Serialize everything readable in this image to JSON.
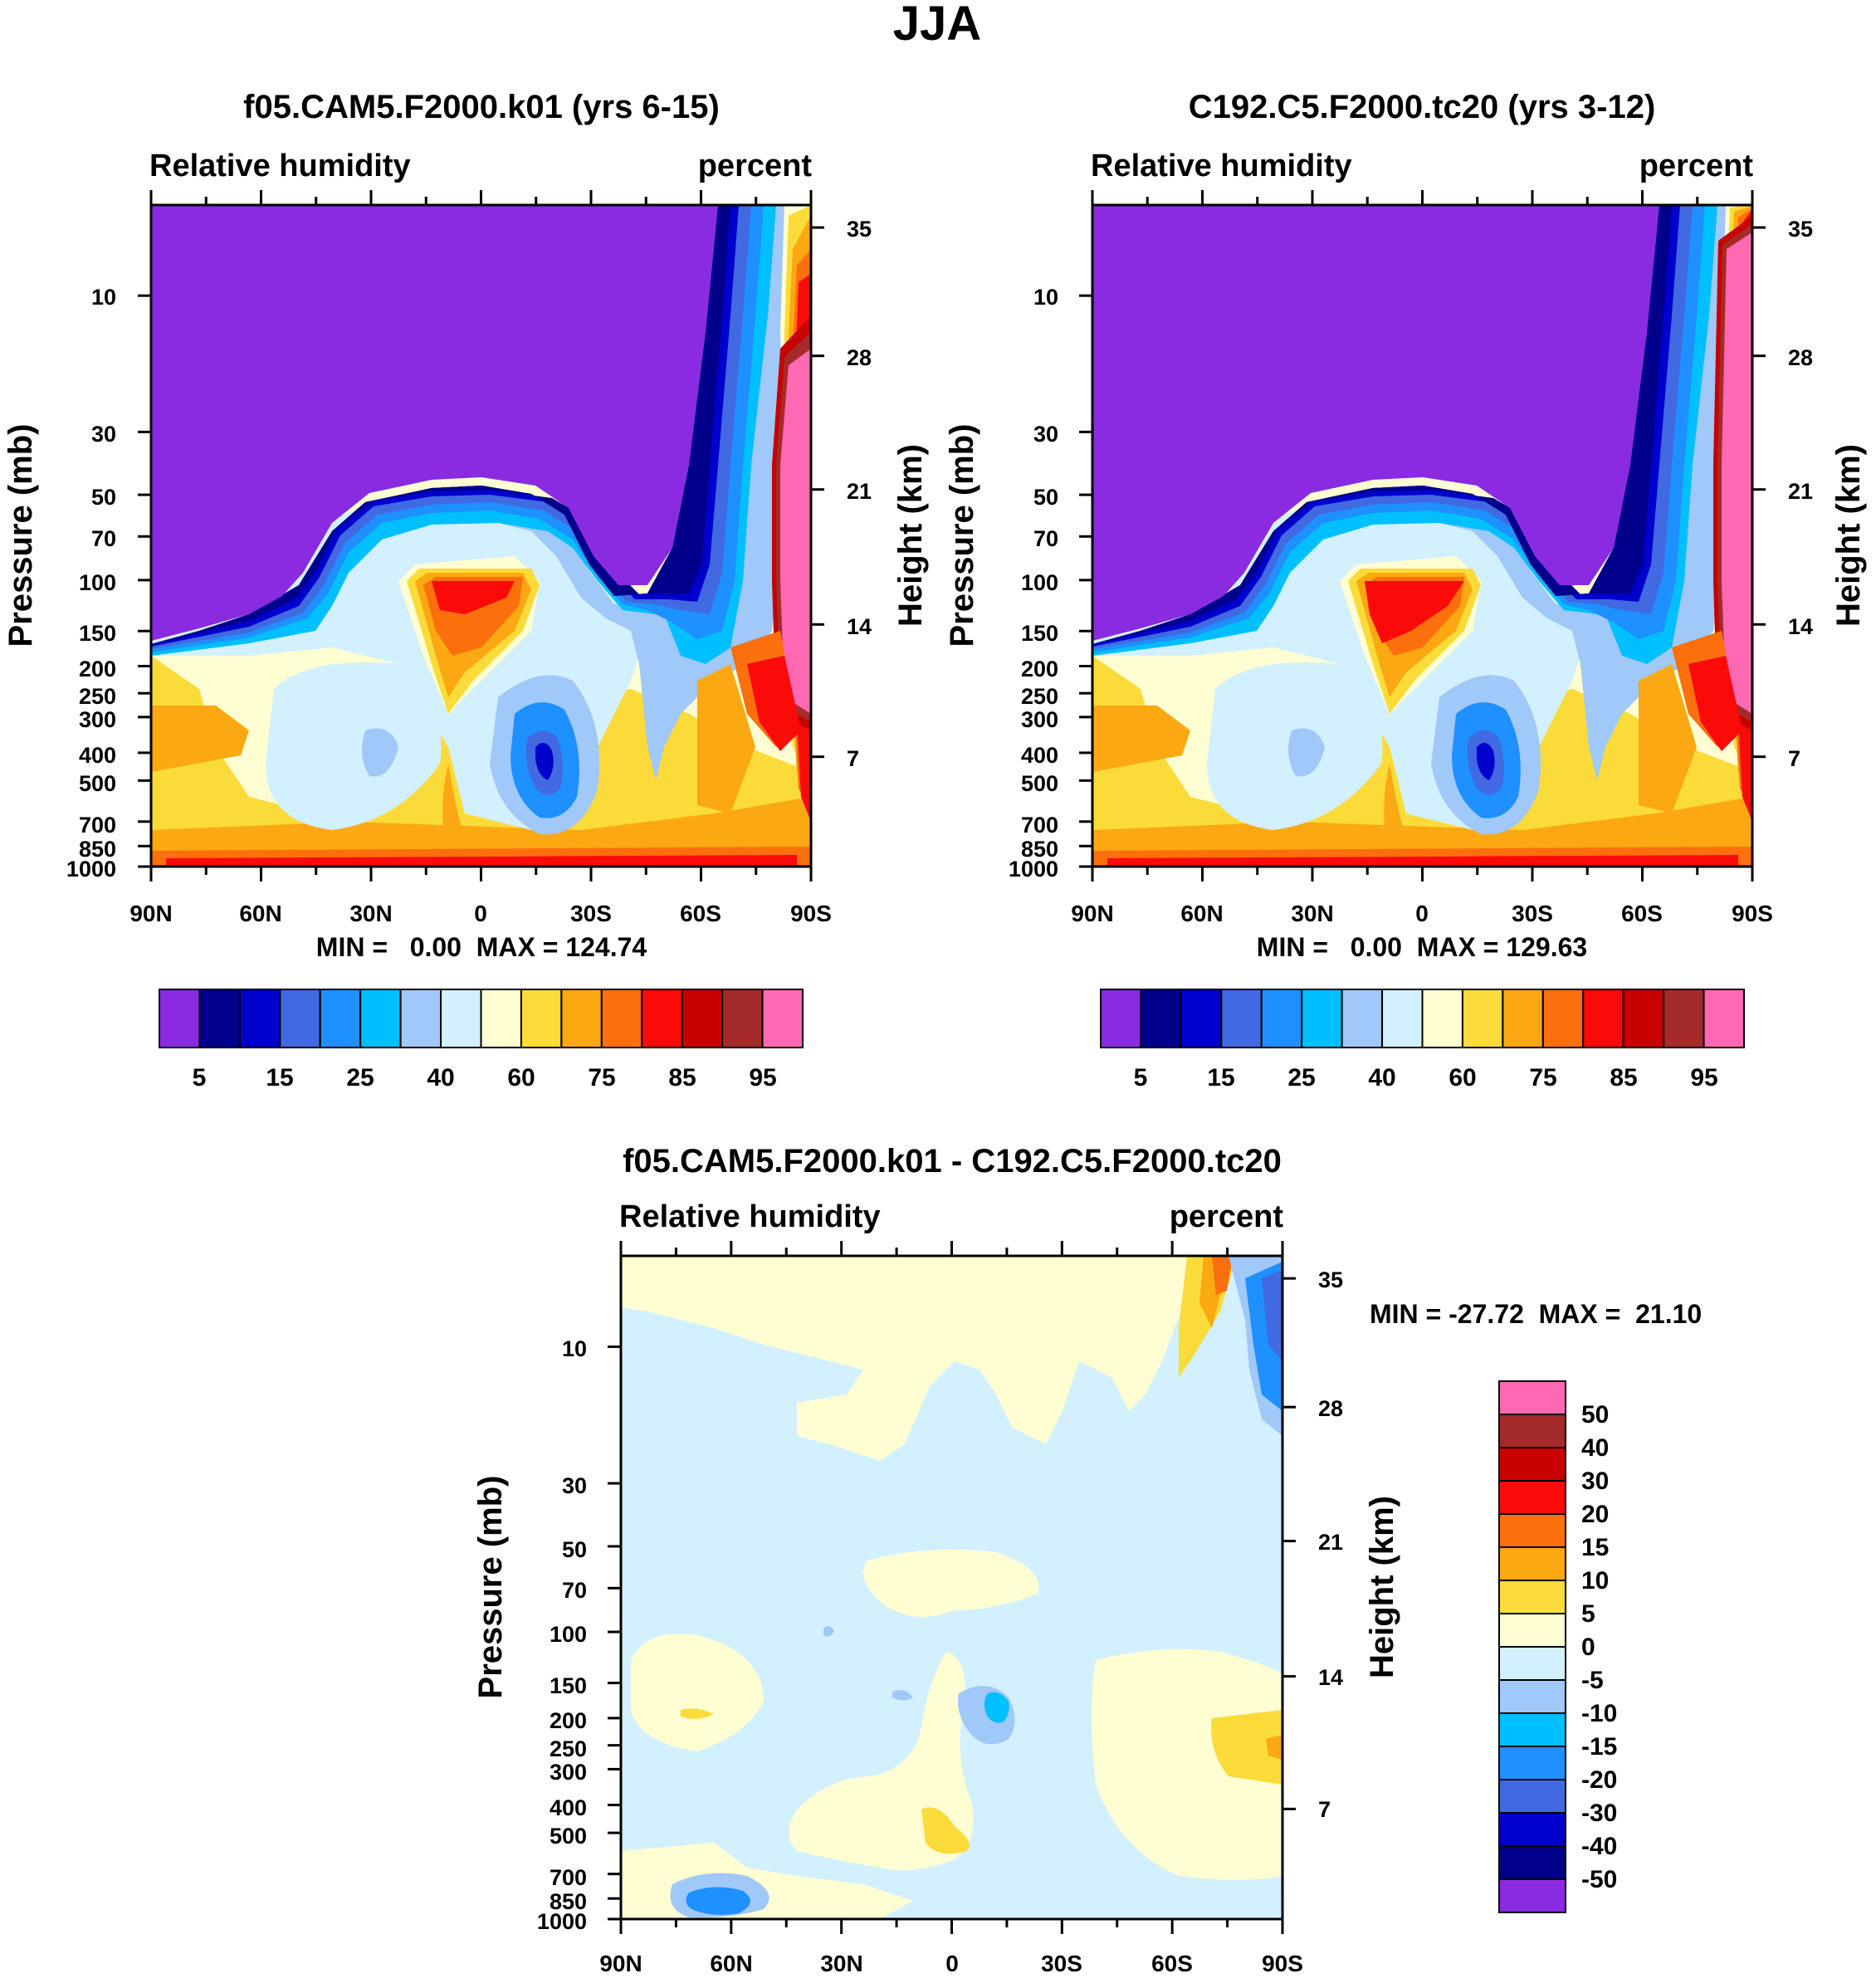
{
  "season": "JJA",
  "colors": {
    "abs_palette": [
      "#8a2be2",
      "#00008b",
      "#0000cd",
      "#4169e1",
      "#1e90ff",
      "#00bfff",
      "#a0c8f8",
      "#d2f0ff",
      "#fffed2",
      "#fbdb39",
      "#fba812",
      "#fb6f0c",
      "#fb0a0a",
      "#c80000",
      "#a52a2a",
      "#ff69b4"
    ],
    "diff_palette": [
      "#8a2be2",
      "#00008b",
      "#0000cd",
      "#4169e1",
      "#1e90ff",
      "#00bfff",
      "#a0c8f8",
      "#d2f0ff",
      "#fffed2",
      "#fbdb39",
      "#fba812",
      "#fb6f0c",
      "#fb0a0a",
      "#c80000",
      "#a52a2a",
      "#ff69b4"
    ]
  },
  "chart_data": [
    {
      "type": "heatmap",
      "title": "f05.CAM5.F2000.k01 (yrs 6-15)",
      "left_string": "Relative humidity",
      "right_string": "percent",
      "ylabel": "Pressure (mb)",
      "ylabel_right": "Height (km)",
      "x_ticks": [
        "90N",
        "60N",
        "30N",
        "0",
        "30S",
        "60S",
        "90S"
      ],
      "y_ticks": [
        "10",
        "30",
        "50",
        "70",
        "100",
        "150",
        "200",
        "250",
        "300",
        "400",
        "500",
        "700",
        "850",
        "1000"
      ],
      "height_ticks": [
        "35",
        "28",
        "21",
        "14",
        "7"
      ],
      "min_max": "MIN =   0.00  MAX = 124.74",
      "min": 0.0,
      "max": 124.74,
      "colorbar_labels": [
        "5",
        "15",
        "25",
        "40",
        "60",
        "75",
        "85",
        "95"
      ],
      "ylim_mb": [
        1000,
        5
      ]
    },
    {
      "type": "heatmap",
      "title": "C192.C5.F2000.tc20 (yrs 3-12)",
      "left_string": "Relative humidity",
      "right_string": "percent",
      "ylabel": "Pressure (mb)",
      "ylabel_right": "Height (km)",
      "x_ticks": [
        "90N",
        "60N",
        "30N",
        "0",
        "30S",
        "60S",
        "90S"
      ],
      "y_ticks": [
        "10",
        "30",
        "50",
        "70",
        "100",
        "150",
        "200",
        "250",
        "300",
        "400",
        "500",
        "700",
        "850",
        "1000"
      ],
      "height_ticks": [
        "35",
        "28",
        "21",
        "14",
        "7"
      ],
      "min_max": "MIN =   0.00  MAX = 129.63",
      "min": 0.0,
      "max": 129.63,
      "colorbar_labels": [
        "5",
        "15",
        "25",
        "40",
        "60",
        "75",
        "85",
        "95"
      ],
      "ylim_mb": [
        1000,
        5
      ]
    },
    {
      "type": "heatmap",
      "title": "f05.CAM5.F2000.k01 - C192.C5.F2000.tc20",
      "left_string": "Relative humidity",
      "right_string": "percent",
      "ylabel": "Pressure (mb)",
      "ylabel_right": "Height (km)",
      "x_ticks": [
        "90N",
        "60N",
        "30N",
        "0",
        "30S",
        "60S",
        "90S"
      ],
      "y_ticks": [
        "10",
        "30",
        "50",
        "70",
        "100",
        "150",
        "200",
        "250",
        "300",
        "400",
        "500",
        "700",
        "850",
        "1000"
      ],
      "height_ticks": [
        "35",
        "28",
        "21",
        "14",
        "7"
      ],
      "min_max": "MIN = -27.72  MAX =  21.10",
      "min": -27.72,
      "max": 21.1,
      "colorbar_labels": [
        "50",
        "40",
        "30",
        "20",
        "15",
        "10",
        "5",
        "0",
        "-5",
        "-10",
        "-15",
        "-20",
        "-30",
        "-40",
        "-50"
      ],
      "ylim_mb": [
        1000,
        5
      ]
    }
  ]
}
